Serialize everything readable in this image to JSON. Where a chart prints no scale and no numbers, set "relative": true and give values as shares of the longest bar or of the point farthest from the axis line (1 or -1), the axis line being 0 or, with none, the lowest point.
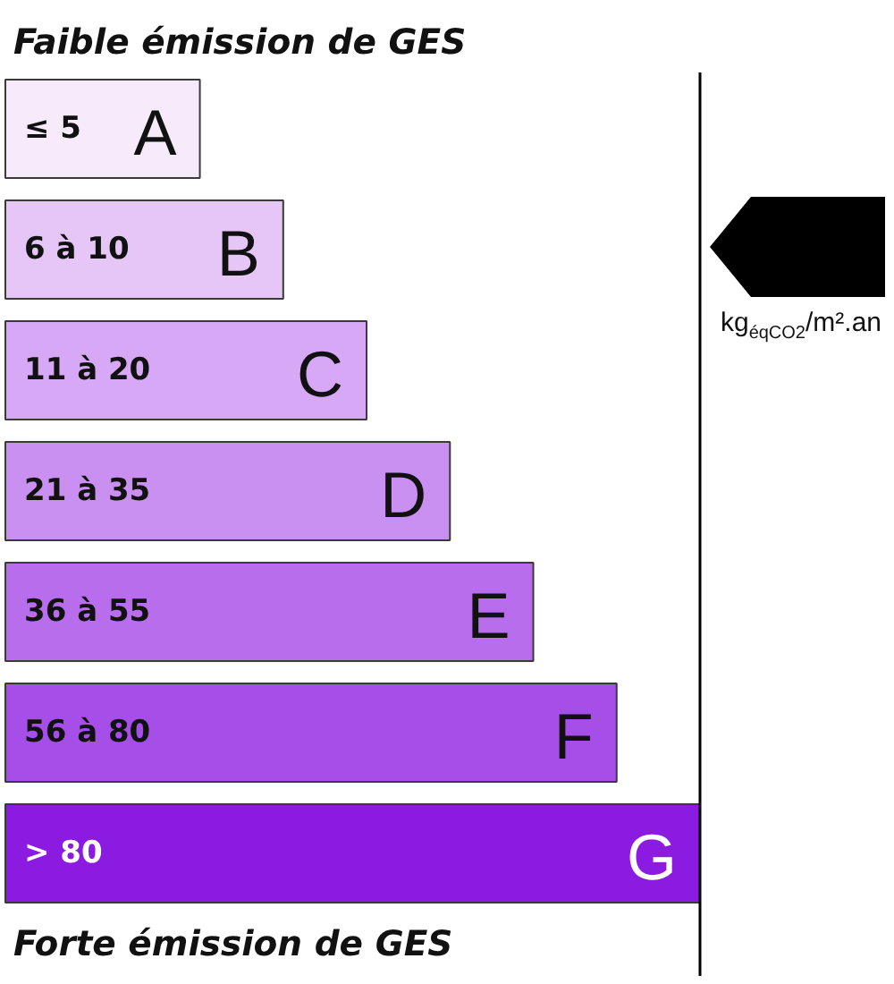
{
  "chart_data": {
    "type": "bar",
    "orientation": "horizontal",
    "relative": true,
    "title": "Faible émission de GES",
    "categories": [
      "A",
      "B",
      "C",
      "D",
      "E",
      "F",
      "G"
    ],
    "values": [
      0.28,
      0.4,
      0.52,
      0.64,
      0.76,
      0.88,
      1
    ],
    "colors": [
      "#f6eafb",
      "#e5c6f6",
      "#d6a8f5",
      "#c98ff1",
      "#b76dec",
      "#a64fe8",
      "#8b1be0"
    ],
    "ref_lines": [
      {
        "axis": "x",
        "value": 1,
        "color": "#000000"
      }
    ],
    "annotations": [
      "≤ 5",
      "6 à 10",
      "11 à 20",
      "21 à 35",
      "36 à 55",
      "56 à 80",
      "> 80",
      "Forte émission de GES",
      "kg$_{éqCO2}$/m².an"
    ]
  }
}
